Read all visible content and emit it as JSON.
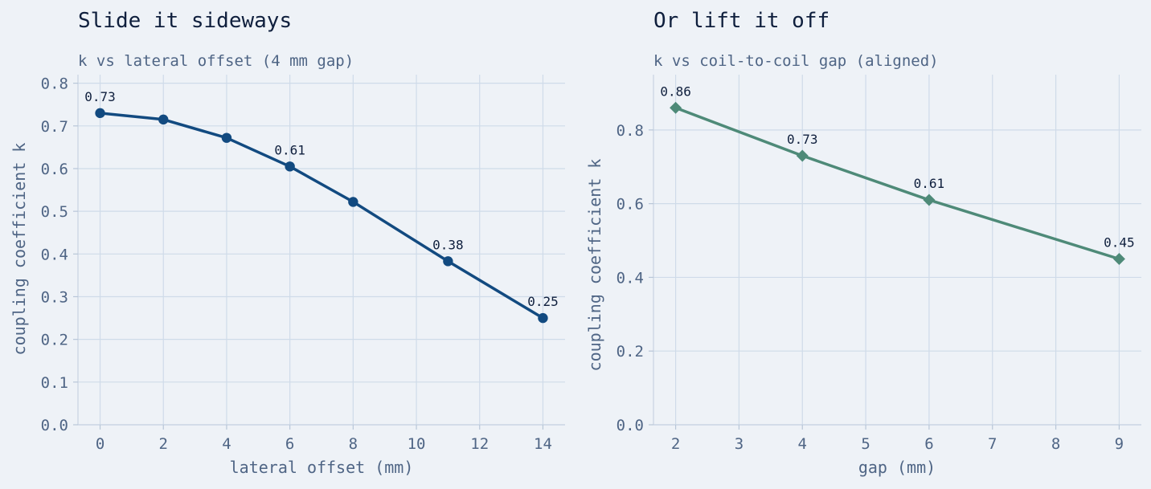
{
  "chart_data": [
    {
      "type": "line",
      "title": "Slide it sideways",
      "subtitle": "k vs lateral offset (4 mm gap)",
      "xlabel": "lateral offset (mm)",
      "ylabel": "coupling coefficient  k",
      "xlim": [
        -0.7,
        14.7
      ],
      "ylim": [
        0,
        0.82
      ],
      "xticks": [
        0,
        2,
        4,
        6,
        8,
        10,
        12,
        14
      ],
      "yticks": [
        0.0,
        0.1,
        0.2,
        0.3,
        0.4,
        0.5,
        0.6,
        0.7,
        0.8
      ],
      "ytick_decimals": 1,
      "grid": true,
      "marker": "circle",
      "color": "#124a80",
      "series": [
        {
          "x": [
            0,
            2,
            4,
            6,
            8,
            11,
            14
          ],
          "values": [
            0.73,
            0.715,
            0.672,
            0.605,
            0.522,
            0.383,
            0.25
          ]
        }
      ],
      "annotations": [
        {
          "x": 0,
          "y": 0.73,
          "text": "0.73"
        },
        {
          "x": 6,
          "y": 0.605,
          "text": "0.61"
        },
        {
          "x": 11,
          "y": 0.383,
          "text": "0.38"
        },
        {
          "x": 14,
          "y": 0.25,
          "text": "0.25"
        }
      ]
    },
    {
      "type": "line",
      "title": "Or lift it off",
      "subtitle": "k vs coil-to-coil gap (aligned)",
      "xlabel": "gap (mm)",
      "ylabel": "coupling coefficient  k",
      "xlim": [
        1.65,
        9.35
      ],
      "ylim": [
        0,
        0.95
      ],
      "xticks": [
        2,
        3,
        4,
        5,
        6,
        7,
        8,
        9
      ],
      "yticks": [
        0.0,
        0.2,
        0.4,
        0.6,
        0.8
      ],
      "ytick_decimals": 1,
      "grid": true,
      "marker": "diamond",
      "color": "#4e8a78",
      "series": [
        {
          "x": [
            2,
            4,
            6,
            9
          ],
          "values": [
            0.86,
            0.73,
            0.61,
            0.45
          ]
        }
      ],
      "annotations": [
        {
          "x": 2,
          "y": 0.86,
          "text": "0.86"
        },
        {
          "x": 4,
          "y": 0.73,
          "text": "0.73"
        },
        {
          "x": 6,
          "y": 0.61,
          "text": "0.61"
        },
        {
          "x": 9,
          "y": 0.45,
          "text": "0.45"
        }
      ]
    }
  ]
}
